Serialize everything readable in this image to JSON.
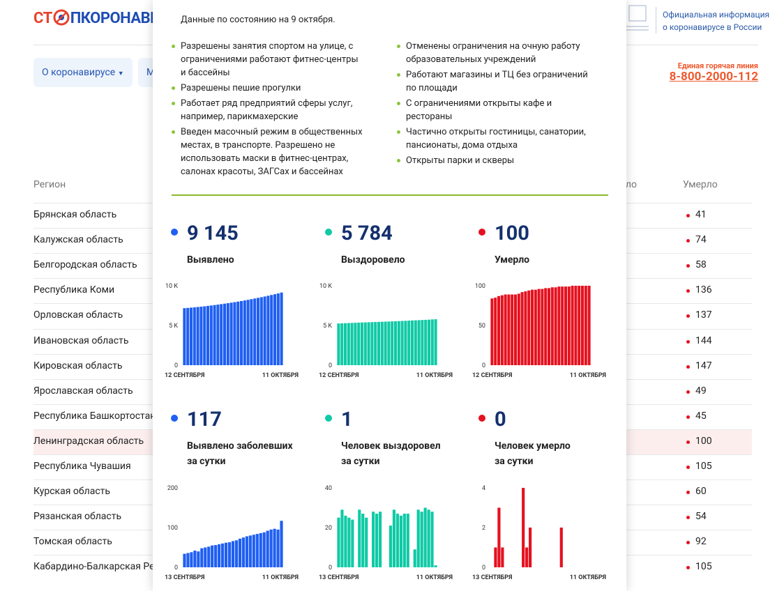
{
  "header": {
    "logo_left": "СТ",
    "logo_right": "ПКОРОНАВИ",
    "official_info": [
      "Официальная информация",
      "о коронавирусе в России"
    ],
    "hotline_label": "Единая горячая линия",
    "hotline_number": "8-800-2000-112"
  },
  "nav": [
    "О коронавирусе",
    "М"
  ],
  "table": {
    "columns": [
      "Регион",
      "Выздоровело",
      "Умерло"
    ],
    "rows": [
      [
        "Брянская область",
        41
      ],
      [
        "Калужская область",
        74
      ],
      [
        "Белгородская область",
        58
      ],
      [
        "Республика Коми",
        136
      ],
      [
        "Орловская область",
        137
      ],
      [
        "Ивановская область",
        144
      ],
      [
        "Кировская область",
        147
      ],
      [
        "Ярославская область",
        49
      ],
      [
        "Республика Башкортостан",
        45
      ],
      [
        "Ленинградская область",
        100
      ],
      [
        "Республика Чувашия",
        105
      ],
      [
        "Курская область",
        60
      ],
      [
        "Рязанская область",
        54
      ],
      [
        "Томская область",
        92
      ],
      [
        "Кабардино-Балкарская Республика",
        105
      ]
    ]
  },
  "popup": {
    "date_note": "Данные по состоянию на 9 октября.",
    "measures_left": [
      "Разрешены занятия спортом на улице, с ограничениями работают фитнес-центры и бассейны",
      "Разрешены пешие прогулки",
      "Работает ряд предприятий сферы услуг, например, парикмахерские",
      "Введен масочный режим в общественных местах, в транспорте. Разрешено не использовать маски в фитнес-центрах, салонах красоты, ЗАГСах и бассейнах"
    ],
    "measures_right": [
      "Отменены ограничения на очную работу образовательных учреждений",
      "Работают магазины и ТЦ без ограничений по площади",
      "С ограничениями открыты кафе и рестораны",
      "Частично открыты гостиницы, санатории, пансионаты, дома отдыха",
      "Открыты парки и скверы"
    ]
  },
  "chart_data": [
    {
      "type": "bar",
      "headline": "9 145",
      "title": [
        "Выявлено"
      ],
      "color": "#1f5ff2",
      "categories": [
        "12 СЕНТЯБРЯ",
        null,
        null,
        null,
        null,
        null,
        null,
        null,
        null,
        null,
        null,
        null,
        null,
        null,
        null,
        null,
        null,
        null,
        null,
        null,
        null,
        null,
        null,
        null,
        null,
        null,
        null,
        null,
        null,
        "11 ОКТЯБРЯ"
      ],
      "values": [
        7176,
        7210,
        7246,
        7284,
        7326,
        7366,
        7414,
        7464,
        7516,
        7571,
        7627,
        7685,
        7745,
        7807,
        7870,
        7936,
        8004,
        8076,
        8151,
        8229,
        8309,
        8391,
        8475,
        8561,
        8649,
        8741,
        8836,
        8933,
        9028,
        9145
      ],
      "ylim": [
        0,
        10000
      ],
      "yticks": [
        0,
        {
          "value": 5000,
          "label": "5 K"
        },
        {
          "value": 10000,
          "label": "10 K"
        }
      ]
    },
    {
      "type": "bar",
      "headline": "5 784",
      "title": [
        "Выздоровело"
      ],
      "color": "#0fcaa6",
      "categories": [
        "12 СЕНТЯБРЯ",
        null,
        null,
        null,
        null,
        null,
        null,
        null,
        null,
        null,
        null,
        null,
        null,
        null,
        null,
        null,
        null,
        null,
        null,
        null,
        null,
        null,
        null,
        null,
        null,
        null,
        null,
        null,
        null,
        "11 ОКТЯБРЯ"
      ],
      "values": [
        5250,
        5270,
        5290,
        5305,
        5320,
        5340,
        5360,
        5375,
        5390,
        5405,
        5420,
        5440,
        5455,
        5470,
        5485,
        5500,
        5520,
        5535,
        5550,
        5570,
        5590,
        5610,
        5630,
        5650,
        5670,
        5690,
        5710,
        5730,
        5760,
        5784
      ],
      "ylim": [
        0,
        10000
      ],
      "yticks": [
        0,
        {
          "value": 5000,
          "label": "5 K"
        },
        {
          "value": 10000,
          "label": "10 K"
        }
      ]
    },
    {
      "type": "bar",
      "headline": "100",
      "title": [
        "Умерло"
      ],
      "color": "#e5111f",
      "categories": [
        "12 СЕНТЯБРЯ",
        null,
        null,
        null,
        null,
        null,
        null,
        null,
        null,
        null,
        null,
        null,
        null,
        null,
        null,
        null,
        null,
        null,
        null,
        null,
        null,
        null,
        null,
        null,
        null,
        null,
        null,
        null,
        null,
        "11 ОКТЯБРЯ"
      ],
      "values": [
        84,
        85,
        87,
        88,
        89,
        89,
        89,
        89,
        90,
        92,
        93,
        94,
        95,
        95,
        96,
        96,
        97,
        97,
        98,
        98,
        99,
        99,
        99,
        99,
        100,
        100,
        100,
        100,
        100,
        100
      ],
      "ylim": [
        0,
        100
      ],
      "yticks": [
        0,
        50,
        100
      ]
    },
    {
      "type": "bar",
      "headline": "117",
      "title": [
        "Выявлено заболевших",
        "за сутки"
      ],
      "color": "#1f5ff2",
      "categories": [
        "13 СЕНТЯБРЯ",
        null,
        null,
        null,
        null,
        null,
        null,
        null,
        null,
        null,
        null,
        null,
        null,
        null,
        null,
        null,
        null,
        null,
        null,
        null,
        null,
        null,
        null,
        null,
        null,
        null,
        null,
        null,
        "11 ОКТЯБРЯ"
      ],
      "values": [
        34,
        36,
        38,
        42,
        40,
        48,
        50,
        52,
        55,
        56,
        58,
        60,
        62,
        63,
        66,
        68,
        72,
        75,
        78,
        80,
        82,
        84,
        86,
        88,
        92,
        95,
        97,
        95,
        117
      ],
      "ylim": [
        0,
        200
      ],
      "yticks": [
        0,
        100,
        200
      ]
    },
    {
      "type": "bar",
      "headline": "1",
      "title": [
        "Человек выздоровел",
        "за сутки"
      ],
      "color": "#0fcaa6",
      "categories": [
        "13 СЕНТЯБРЯ",
        null,
        null,
        null,
        null,
        null,
        null,
        null,
        null,
        null,
        null,
        null,
        null,
        null,
        null,
        null,
        null,
        null,
        null,
        null,
        null,
        null,
        null,
        null,
        null,
        null,
        null,
        null,
        "11 ОКТЯБРЯ"
      ],
      "values": [
        25,
        29,
        26,
        25,
        24,
        0,
        29,
        27,
        25,
        0,
        28,
        27,
        28,
        0,
        0,
        21,
        29,
        27,
        26,
        27,
        27,
        0,
        9,
        29,
        28,
        30,
        29,
        28,
        1
      ],
      "ylim": [
        0,
        40
      ],
      "yticks": [
        0,
        20,
        40
      ]
    },
    {
      "type": "bar",
      "headline": "0",
      "title": [
        "Человек умерло",
        "за сутки"
      ],
      "color": "#e5111f",
      "categories": [
        "13 СЕНТЯБРЯ",
        null,
        null,
        null,
        null,
        null,
        null,
        null,
        null,
        null,
        null,
        null,
        null,
        null,
        null,
        null,
        null,
        null,
        null,
        null,
        null,
        null,
        null,
        null,
        null,
        null,
        null,
        null,
        "11 ОКТЯБРЯ"
      ],
      "values": [
        0,
        1,
        3,
        1,
        0,
        0,
        0,
        0,
        0,
        4,
        1,
        2,
        0,
        0,
        0,
        0,
        0,
        0,
        0,
        0,
        2,
        0,
        0,
        0,
        0,
        0,
        0,
        0,
        0
      ],
      "ylim": [
        0,
        4
      ],
      "yticks": [
        0,
        2,
        4
      ]
    }
  ]
}
